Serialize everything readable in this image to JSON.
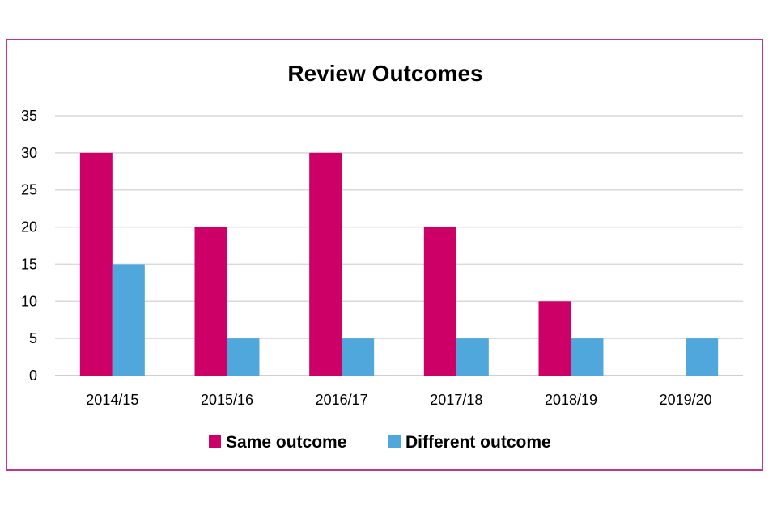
{
  "chart_data": {
    "type": "bar",
    "title": "Review Outcomes",
    "xlabel": "",
    "ylabel": "",
    "categories": [
      "2014/15",
      "2015/16",
      "2016/17",
      "2017/18",
      "2018/19",
      "2019/20"
    ],
    "series": [
      {
        "name": "Same outcome",
        "color": "#cc0066",
        "values": [
          30,
          20,
          30,
          20,
          10,
          0
        ]
      },
      {
        "name": "Different outcome",
        "color": "#4fa7dc",
        "values": [
          15,
          5,
          5,
          5,
          5,
          5
        ]
      }
    ],
    "ylim": [
      0,
      35
    ],
    "yticks": [
      0,
      5,
      10,
      15,
      20,
      25,
      30,
      35
    ],
    "grid": true,
    "legend_position": "bottom"
  }
}
